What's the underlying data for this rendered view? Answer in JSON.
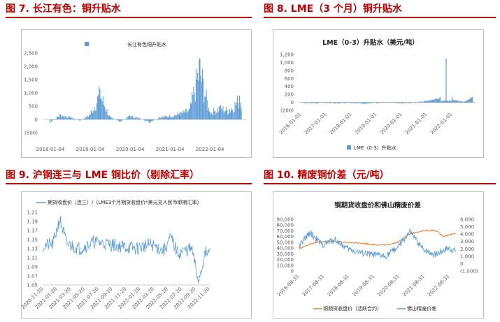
{
  "panels": [
    {
      "title": "图 7.  长江有色：铜升贴水"
    },
    {
      "title": "图 8.  LME（3 个月）铜升贴水"
    },
    {
      "title": "图 9.  沪铜连三与 LME 铜比价（剔除汇率）"
    },
    {
      "title": "图 10.  精废铜价差（元/吨）"
    }
  ],
  "chart_data": [
    {
      "type": "bar",
      "title": "",
      "legend": [
        "长江有色铜升贴水"
      ],
      "legend_position": "top",
      "color": "#5b9bd5",
      "ylim": [
        -500,
        2500
      ],
      "yticks": [
        "2,500",
        "2,000",
        "1,500",
        "1,000",
        "500",
        "0",
        "(500)"
      ],
      "xticks": [
        "2018-01-04",
        "2019-01-04",
        "2020-01-04",
        "2021-01-04",
        "2022-01-04"
      ],
      "series": [
        {
          "name": "长江有色铜升贴水",
          "x": [
            "2018-01",
            "2018-04",
            "2018-07",
            "2018-10",
            "2019-01",
            "2019-04",
            "2019-07",
            "2019-10",
            "2020-01",
            "2020-04",
            "2020-07",
            "2020-10",
            "2021-01",
            "2021-04",
            "2021-07",
            "2021-10",
            "2022-01",
            "2022-04",
            "2022-07",
            "2022-10"
          ],
          "values": [
            -150,
            200,
            100,
            -50,
            200,
            1150,
            100,
            -100,
            150,
            50,
            -150,
            100,
            150,
            250,
            400,
            2300,
            300,
            500,
            400,
            900
          ]
        }
      ]
    },
    {
      "type": "bar",
      "title": "LME（0-3）升贴水（美元/吨）",
      "legend": [
        "LME（0-3）升贴水"
      ],
      "legend_position": "bottom",
      "color": "#5b9bd5",
      "ylim": [
        -200,
        1200
      ],
      "yticks": [
        "1,200",
        "1,000",
        "800",
        "600",
        "400",
        "200",
        "0",
        "(200)"
      ],
      "xticks": [
        "2016-01-01",
        "2017-01-01",
        "2018-01-01",
        "2019-01-01",
        "2020-01-01",
        "2021-01-01",
        "2022-01-01"
      ],
      "series": [
        {
          "name": "LME（0-3）升贴水",
          "x": [
            "2016-01",
            "2016-07",
            "2017-01",
            "2017-07",
            "2018-01",
            "2018-07",
            "2019-01",
            "2019-07",
            "2020-01",
            "2020-07",
            "2021-01",
            "2021-07",
            "2021-10",
            "2022-01",
            "2022-07",
            "2022-10"
          ],
          "values": [
            -10,
            -15,
            -10,
            -20,
            -15,
            -30,
            -10,
            10,
            -20,
            -10,
            40,
            100,
            1100,
            60,
            20,
            120
          ]
        }
      ]
    },
    {
      "type": "line",
      "title": "",
      "legend": [
        "期货收盘价（连三）/（LME3个月期货收盘价*美元兑人民币即期汇率）"
      ],
      "legend_position": "top",
      "color": "#5b9bd5",
      "ylim": [
        1.05,
        1.21
      ],
      "yticks": [
        "1.21",
        "1.19",
        "1.17",
        "1.15",
        "1.13",
        "1.11",
        "1.09",
        "1.07",
        "1.05"
      ],
      "xticks": [
        "2020-11-20",
        "2021-01-20",
        "2021-03-20",
        "2021-05-20",
        "2021-07-20",
        "2021-09-20",
        "2021-11-20",
        "2022-01-20",
        "2022-03-20",
        "2022-05-20",
        "2022-07-20",
        "2022-09-20",
        "2022-11-20"
      ],
      "series": [
        {
          "name": "期货收盘价（连三）/（LME3个月期货收盘价*美元兑人民币即期汇率）",
          "x": [
            "2020-11",
            "2021-01",
            "2021-02",
            "2021-03",
            "2021-05",
            "2021-07",
            "2021-09",
            "2021-11",
            "2022-01",
            "2022-03",
            "2022-05",
            "2022-06",
            "2022-07",
            "2022-09",
            "2022-10",
            "2022-11"
          ],
          "values": [
            1.135,
            1.14,
            1.195,
            1.14,
            1.13,
            1.145,
            1.14,
            1.135,
            1.13,
            1.14,
            1.125,
            1.155,
            1.12,
            1.13,
            1.06,
            1.12
          ]
        }
      ]
    },
    {
      "type": "line",
      "title": "铜期货收盘价和佛山精废价差",
      "legend_position": "bottom",
      "ylim_left": [
        0,
        90000
      ],
      "ylim_right": [
        -1000,
        6000
      ],
      "yticks_left": [
        "90,000",
        "80,000",
        "70,000",
        "60,000",
        "50,000",
        "40,000",
        "30,000",
        "20,000",
        "10,000",
        "0"
      ],
      "yticks_right": [
        "6,000",
        "5,000",
        "4,000",
        "3,000",
        "2,000",
        "1,000",
        "0",
        "(1,000)"
      ],
      "xticks": [
        "2016-08-31",
        "2017-08-31",
        "2018-08-31",
        "2019-08-31",
        "2020-08-31",
        "2021-08-31",
        "2022-08-31"
      ],
      "series": [
        {
          "name": "铜期货收盘价（活跃合约）",
          "color": "#ed7d31",
          "axis": "left",
          "x": [
            "2016-08",
            "2017-02",
            "2017-08",
            "2018-02",
            "2018-08",
            "2019-02",
            "2019-08",
            "2020-02",
            "2020-08",
            "2021-02",
            "2021-08",
            "2022-02",
            "2022-06",
            "2022-11"
          ],
          "values": [
            37000,
            47000,
            51000,
            52000,
            49000,
            49000,
            46000,
            45000,
            50000,
            65000,
            70000,
            71000,
            60000,
            65000
          ]
        },
        {
          "name": "佛山精废价差",
          "color": "#5b9bd5",
          "axis": "right",
          "x": [
            "2016-08",
            "2017-02",
            "2017-08",
            "2018-02",
            "2018-08",
            "2019-02",
            "2019-08",
            "2020-02",
            "2020-08",
            "2021-02",
            "2021-08",
            "2022-02",
            "2022-08",
            "2022-11"
          ],
          "values": [
            2000,
            4200,
            2500,
            3300,
            2000,
            1500,
            1200,
            1000,
            2200,
            4300,
            2000,
            1200,
            2100,
            1800
          ]
        }
      ]
    }
  ]
}
